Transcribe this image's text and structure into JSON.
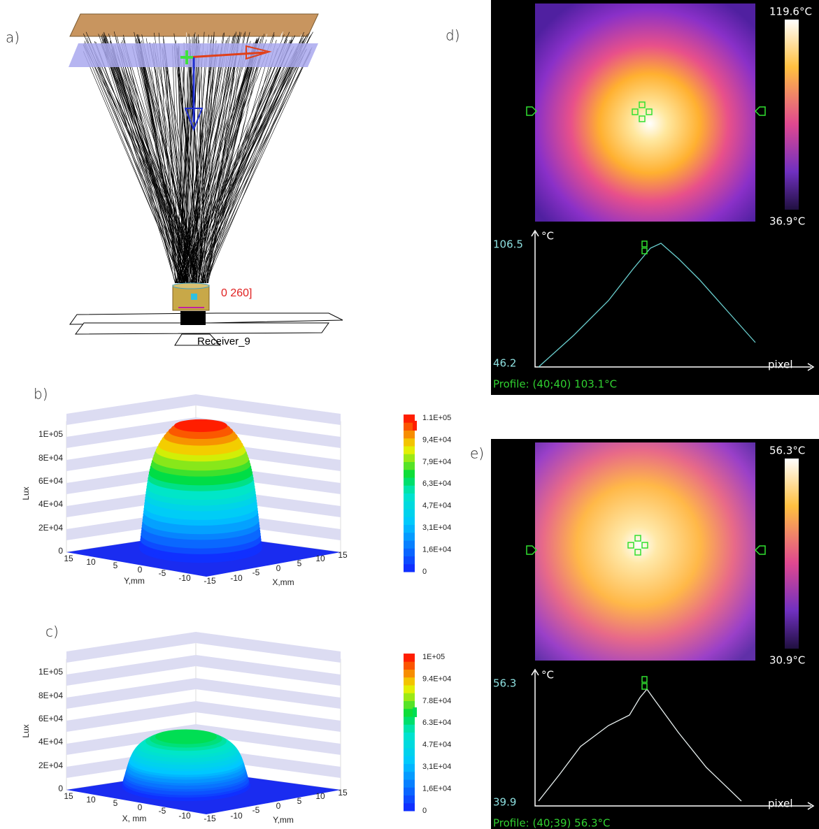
{
  "panels": [
    {
      "label": "a)",
      "annotation": "0 260]",
      "receiver": "Receiver_9"
    },
    {
      "label": "b)",
      "z_axis_title": "Lux",
      "z_ticks": [
        "1E+05",
        "8E+04",
        "6E+04",
        "4E+04",
        "2E+04",
        "0"
      ],
      "left_ticks": [
        "15",
        "10",
        "5",
        "0",
        "-5",
        "-10",
        "-15"
      ],
      "left_axis_title": "Y,mm",
      "right_ticks": [
        "-10",
        "-5",
        "0",
        "5",
        "10",
        "15"
      ],
      "right_axis_title": "X,mm",
      "colorbar_ticks": [
        "1.1E+05",
        "9,4E+04",
        "7,9E+04",
        "6,3E+04",
        "4,7E+04",
        "3,1E+04",
        "1,6E+04",
        "0"
      ]
    },
    {
      "label": "c)",
      "z_axis_title": "Lux",
      "z_ticks": [
        "1E+05",
        "8E+04",
        "6E+04",
        "4E+04",
        "2E+04",
        "0"
      ],
      "left_ticks": [
        "15",
        "10",
        "5",
        "0",
        "-5",
        "-10",
        "-15"
      ],
      "left_axis_title": "X, mm",
      "right_ticks": [
        "-10",
        "-5",
        "0",
        "5",
        "10",
        "15"
      ],
      "right_axis_title": "Y,mm",
      "colorbar_ticks": [
        "1E+05",
        "9.4E+04",
        "7.8E+04",
        "6.3E+04",
        "4.7E+04",
        "3,1E+04",
        "1,6E+04",
        "0"
      ]
    },
    {
      "label": "d)",
      "scale_max": "119.6°C",
      "scale_min": "36.9°C",
      "unit": "°C",
      "profile_max": "106.5",
      "profile_min": "46.2",
      "x_axis_title": "pixel",
      "readout": "Profile: (40;40) 103.1°C"
    },
    {
      "label": "e)",
      "scale_max": "56.3°C",
      "scale_min": "30.9°C",
      "unit": "°C",
      "profile_max": "56.3",
      "profile_min": "39.9",
      "x_axis_title": "pixel",
      "readout": "Profile: (40;39) 56.3°C"
    }
  ]
}
